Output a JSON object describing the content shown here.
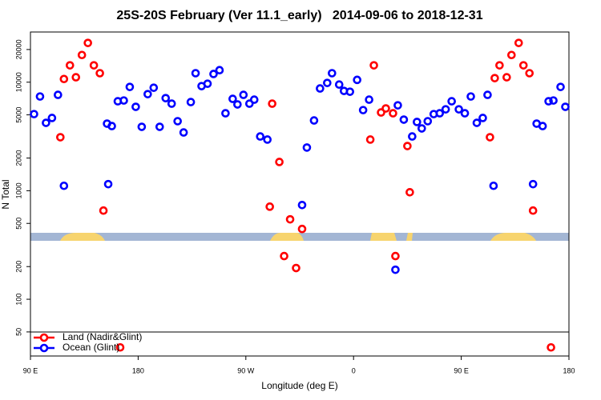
{
  "chart_data": {
    "type": "scatter",
    "title": "25S-20S February (Ver 11.1_early)   2014-09-06 to 2018-12-31",
    "xlabel": "Longitude (deg E)",
    "ylabel": "N Total",
    "xlim": [
      90,
      540
    ],
    "xticks": [
      {
        "value": 90,
        "label": "90 E"
      },
      180,
      {
        "value": 270,
        "label": "90 W"
      },
      {
        "value": 360,
        "label": "0"
      },
      {
        "value": 450,
        "label": "90 E"
      },
      {
        "value": 540,
        "label": "180"
      }
    ],
    "ylim": [
      30,
      29000
    ],
    "yscale": "log",
    "yticks": [
      50,
      100,
      200,
      500,
      1000,
      2000,
      5000,
      10000,
      20000
    ],
    "legend": "bottom-left",
    "series": [
      {
        "name": "Land (Nadir&Glint)",
        "color": "#ff0000",
        "x": [
          115,
          118,
          123,
          128,
          133,
          138,
          143,
          148,
          151,
          165,
          290,
          292,
          298,
          302,
          307,
          312,
          317,
          374,
          377,
          383,
          387,
          393,
          395,
          405,
          407,
          474,
          478,
          482,
          488,
          492,
          498,
          502,
          507,
          510,
          525
        ],
        "values": [
          3110,
          10700,
          14300,
          11100,
          17800,
          23000,
          14300,
          12100,
          656,
          36,
          713,
          6340,
          1840,
          250,
          545,
          194,
          444,
          2960,
          14300,
          5260,
          5730,
          5170,
          250,
          2580,
          968,
          3110,
          10900,
          14300,
          11100,
          17800,
          23000,
          14300,
          12100,
          656,
          36
        ]
      },
      {
        "name": "Ocean (Glint)",
        "color": "#0000ff",
        "x": [
          93,
          98,
          103,
          108,
          113,
          118,
          154,
          155,
          158,
          163,
          168,
          173,
          178,
          183,
          188,
          193,
          198,
          203,
          208,
          213,
          218,
          224,
          228,
          233,
          238,
          243,
          248,
          253,
          259,
          263,
          268,
          273,
          277,
          282,
          288,
          317,
          321,
          327,
          332,
          338,
          342,
          348,
          352,
          357,
          363,
          368,
          373,
          395,
          397,
          402,
          409,
          413,
          417,
          422,
          427,
          432,
          437,
          442,
          448,
          453,
          458,
          463,
          468,
          472,
          477,
          510,
          513,
          518,
          523,
          527,
          533,
          537
        ],
        "values": [
          5080,
          7380,
          4220,
          4680,
          7640,
          1110,
          4150,
          1150,
          3940,
          6670,
          6780,
          9040,
          5930,
          3880,
          7760,
          8890,
          3880,
          7130,
          6340,
          4370,
          3440,
          6560,
          12100,
          9200,
          9680,
          11900,
          12900,
          5170,
          7020,
          6240,
          7640,
          6340,
          6900,
          3160,
          2960,
          738,
          2500,
          4440,
          8750,
          9840,
          12100,
          9510,
          8310,
          8170,
          10500,
          5530,
          6900,
          187,
          6120,
          4520,
          3160,
          4300,
          3750,
          4370,
          5080,
          5170,
          5620,
          6670,
          5620,
          5170,
          7380,
          4220,
          4680,
          7640,
          1110,
          1150,
          4150,
          3940,
          6670,
          6780,
          9040,
          5930
        ]
      }
    ]
  }
}
